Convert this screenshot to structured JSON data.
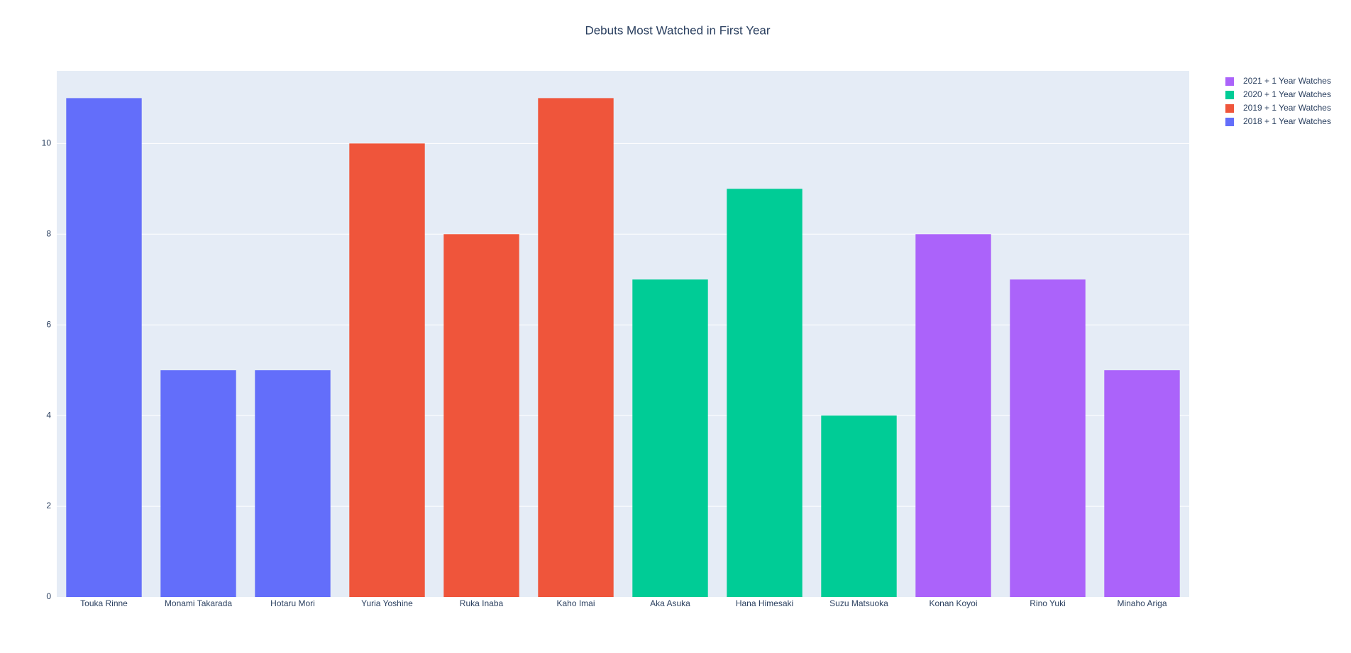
{
  "chart_data": {
    "type": "bar",
    "title": "Debuts Most Watched in First Year",
    "categories": [
      "Touka Rinne",
      "Monami Takarada",
      "Hotaru Mori",
      "Yuria Yoshine",
      "Ruka Inaba",
      "Kaho Imai",
      "Aka Asuka",
      "Hana Himesaki",
      "Suzu Matsuoka",
      "Konan Koyoi",
      "Rino Yuki",
      "Minaho Ariga"
    ],
    "series": [
      {
        "name": "2018 + 1 Year Watches",
        "color": "#636efa",
        "values": [
          11,
          5,
          5,
          null,
          null,
          null,
          null,
          null,
          null,
          null,
          null,
          null
        ]
      },
      {
        "name": "2019 + 1 Year Watches",
        "color": "#EF553B",
        "values": [
          null,
          null,
          null,
          10,
          8,
          11,
          null,
          null,
          null,
          null,
          null,
          null
        ]
      },
      {
        "name": "2020 + 1 Year Watches",
        "color": "#00cc96",
        "values": [
          null,
          null,
          null,
          null,
          null,
          null,
          7,
          9,
          4,
          null,
          null,
          null
        ]
      },
      {
        "name": "2021 + 1 Year Watches",
        "color": "#ab63fa",
        "values": [
          null,
          null,
          null,
          null,
          null,
          null,
          null,
          null,
          null,
          8,
          7,
          5
        ]
      }
    ],
    "ylim": [
      0,
      11.6
    ],
    "yticks": [
      0,
      2,
      4,
      6,
      8,
      10
    ],
    "grid": true,
    "legend": "right"
  }
}
